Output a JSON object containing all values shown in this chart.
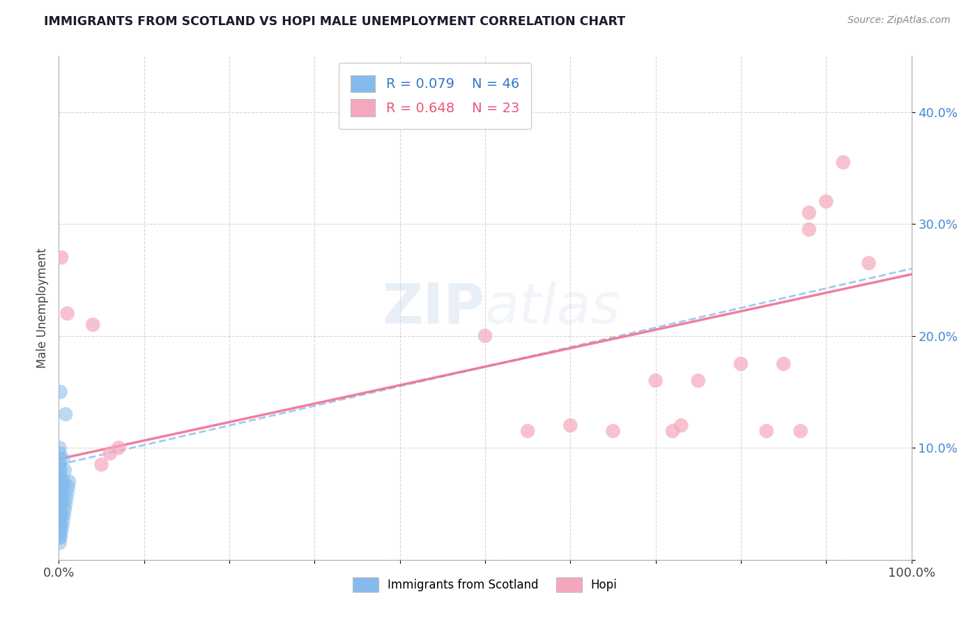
{
  "title": "IMMIGRANTS FROM SCOTLAND VS HOPI MALE UNEMPLOYMENT CORRELATION CHART",
  "source": "Source: ZipAtlas.com",
  "ylabel": "Male Unemployment",
  "legend_label_1": "Immigrants from Scotland",
  "legend_label_2": "Hopi",
  "legend_r1": "R = 0.079",
  "legend_n1": "N = 46",
  "legend_r2": "R = 0.648",
  "legend_n2": "N = 23",
  "xlim": [
    0,
    1.0
  ],
  "ylim": [
    0,
    0.45
  ],
  "xticks": [
    0.0,
    0.1,
    0.2,
    0.3,
    0.4,
    0.5,
    0.6,
    0.7,
    0.8,
    0.9,
    1.0
  ],
  "yticks": [
    0.0,
    0.1,
    0.2,
    0.3,
    0.4
  ],
  "xticklabels": [
    "0.0%",
    "",
    "",
    "",
    "",
    "",
    "",
    "",
    "",
    "",
    "100.0%"
  ],
  "yticklabels": [
    "",
    "10.0%",
    "20.0%",
    "30.0%",
    "40.0%"
  ],
  "color_blue": "#85BBEC",
  "color_pink": "#F5A8BC",
  "color_blue_line": "#95C0EE",
  "color_pink_line": "#F07090",
  "background_color": "#ffffff",
  "blue_trend_start": 0.085,
  "blue_trend_end": 0.26,
  "pink_trend_start": 0.09,
  "pink_trend_end": 0.255,
  "blue_points": [
    [
      0.001,
      0.015
    ],
    [
      0.001,
      0.02
    ],
    [
      0.001,
      0.025
    ],
    [
      0.001,
      0.03
    ],
    [
      0.001,
      0.035
    ],
    [
      0.001,
      0.04
    ],
    [
      0.001,
      0.045
    ],
    [
      0.001,
      0.05
    ],
    [
      0.001,
      0.055
    ],
    [
      0.001,
      0.06
    ],
    [
      0.001,
      0.065
    ],
    [
      0.001,
      0.07
    ],
    [
      0.001,
      0.075
    ],
    [
      0.001,
      0.08
    ],
    [
      0.001,
      0.085
    ],
    [
      0.001,
      0.09
    ],
    [
      0.001,
      0.095
    ],
    [
      0.001,
      0.1
    ],
    [
      0.002,
      0.02
    ],
    [
      0.002,
      0.03
    ],
    [
      0.002,
      0.04
    ],
    [
      0.002,
      0.05
    ],
    [
      0.002,
      0.06
    ],
    [
      0.002,
      0.07
    ],
    [
      0.002,
      0.08
    ],
    [
      0.003,
      0.025
    ],
    [
      0.003,
      0.04
    ],
    [
      0.003,
      0.055
    ],
    [
      0.003,
      0.065
    ],
    [
      0.004,
      0.03
    ],
    [
      0.004,
      0.05
    ],
    [
      0.004,
      0.07
    ],
    [
      0.005,
      0.035
    ],
    [
      0.005,
      0.06
    ],
    [
      0.005,
      0.09
    ],
    [
      0.006,
      0.04
    ],
    [
      0.006,
      0.07
    ],
    [
      0.007,
      0.045
    ],
    [
      0.007,
      0.08
    ],
    [
      0.008,
      0.05
    ],
    [
      0.009,
      0.055
    ],
    [
      0.01,
      0.06
    ],
    [
      0.011,
      0.065
    ],
    [
      0.012,
      0.07
    ],
    [
      0.008,
      0.13
    ],
    [
      0.002,
      0.15
    ]
  ],
  "pink_points": [
    [
      0.003,
      0.27
    ],
    [
      0.01,
      0.22
    ],
    [
      0.04,
      0.21
    ],
    [
      0.05,
      0.085
    ],
    [
      0.06,
      0.095
    ],
    [
      0.07,
      0.1
    ],
    [
      0.5,
      0.2
    ],
    [
      0.55,
      0.115
    ],
    [
      0.6,
      0.12
    ],
    [
      0.65,
      0.115
    ],
    [
      0.7,
      0.16
    ],
    [
      0.72,
      0.115
    ],
    [
      0.73,
      0.12
    ],
    [
      0.75,
      0.16
    ],
    [
      0.8,
      0.175
    ],
    [
      0.83,
      0.115
    ],
    [
      0.85,
      0.175
    ],
    [
      0.87,
      0.115
    ],
    [
      0.88,
      0.295
    ],
    [
      0.88,
      0.31
    ],
    [
      0.9,
      0.32
    ],
    [
      0.92,
      0.355
    ],
    [
      0.95,
      0.265
    ]
  ]
}
